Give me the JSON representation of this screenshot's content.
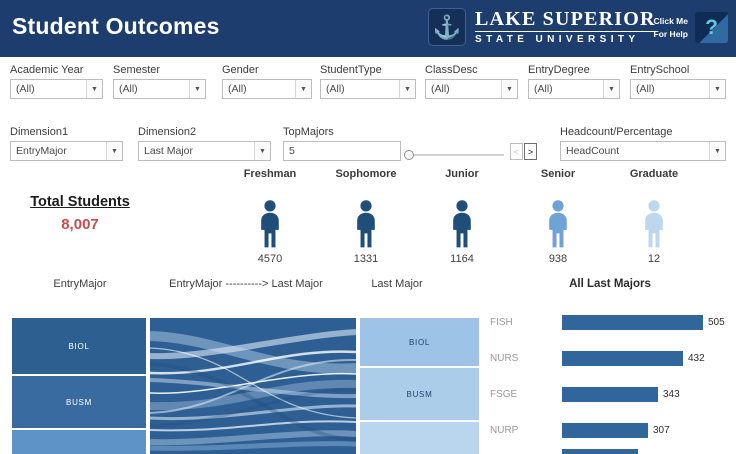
{
  "header": {
    "title": "Student Outcomes",
    "logo": {
      "line1": "LAKE SUPERIOR",
      "line2": "STATE UNIVERSITY"
    },
    "help": {
      "line1": "Click Me",
      "line2": "For Help",
      "icon": "?"
    }
  },
  "icons": {
    "chevron_down": "▼",
    "anchor": "⚓",
    "page_left": "<",
    "page_right": ">"
  },
  "filters": [
    {
      "label": "Academic Year",
      "value": "(All)"
    },
    {
      "label": "Semester",
      "value": "(All)"
    },
    {
      "label": "Gender",
      "value": "(All)"
    },
    {
      "label": "StudentType",
      "value": "(All)"
    },
    {
      "label": "ClassDesc",
      "value": "(All)"
    },
    {
      "label": "EntryDegree",
      "value": "(All)"
    },
    {
      "label": "EntrySchool",
      "value": "(All)"
    }
  ],
  "controls": {
    "dimension1": {
      "label": "Dimension1",
      "value": "EntryMajor"
    },
    "dimension2": {
      "label": "Dimension2",
      "value": "Last Major"
    },
    "top_majors": {
      "label": "TopMajors",
      "value": "5"
    },
    "headcount": {
      "label": "Headcount/Percentage",
      "value": "HeadCount"
    }
  },
  "totals": {
    "label": "Total Students",
    "value": "8,007",
    "value_color": "#cf4a4a"
  },
  "classes": [
    {
      "label": "Freshman",
      "count": "4570",
      "color": "#1f4e79"
    },
    {
      "label": "Sophomore",
      "count": "1331",
      "color": "#1f4e79"
    },
    {
      "label": "Junior",
      "count": "1164",
      "color": "#1f4e79"
    },
    {
      "label": "Senior",
      "count": "938",
      "color": "#6fa3d6"
    },
    {
      "label": "Graduate",
      "count": "12",
      "color": "#bdd7ee"
    }
  ],
  "section_labels": {
    "entry_major": "EntryMajor",
    "flow": "EntryMajor ----------> Last Major",
    "last_major": "Last Major",
    "all_last_majors": "All Last Majors"
  },
  "entry_bar": {
    "segments": [
      {
        "label": "BIOL"
      },
      {
        "label": "BUSM"
      },
      {
        "label": ""
      }
    ]
  },
  "last_bar": {
    "segments": [
      {
        "label": "BIOL"
      },
      {
        "label": "BUSM"
      },
      {
        "label": ""
      }
    ]
  },
  "chart_data": {
    "type": "bar",
    "orientation": "horizontal",
    "title": "All Last Majors",
    "categories": [
      "FISH",
      "NURS",
      "FSGE",
      "NURP"
    ],
    "values": [
      505,
      432,
      343,
      307
    ],
    "bar_color": "#31669d",
    "partial_fifth_bar_visible": true
  }
}
